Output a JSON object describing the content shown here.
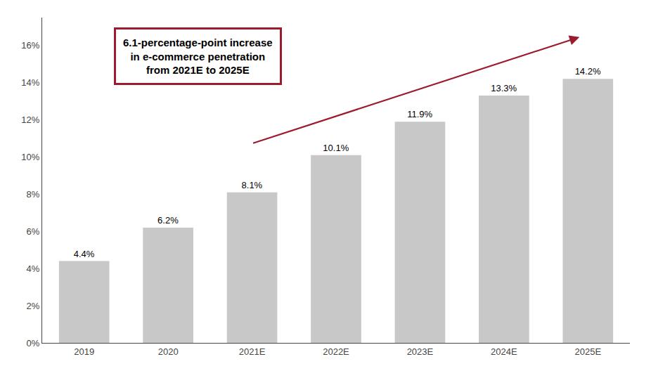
{
  "chart_data": {
    "type": "bar",
    "categories": [
      "2019",
      "2020",
      "2021E",
      "2022E",
      "2023E",
      "2024E",
      "2025E"
    ],
    "values": [
      4.4,
      6.2,
      8.1,
      10.1,
      11.9,
      13.3,
      14.2
    ],
    "value_labels": [
      "4.4%",
      "6.2%",
      "8.1%",
      "10.1%",
      "11.9%",
      "13.3%",
      "14.2%"
    ],
    "data_labels": true,
    "color": "#c8c8c8",
    "ylim": [
      0,
      17.5
    ],
    "yticks": [
      {
        "value": 0,
        "label": "0%"
      },
      {
        "value": 2,
        "label": "2%"
      },
      {
        "value": 4,
        "label": "4%"
      },
      {
        "value": 6,
        "label": "6%"
      },
      {
        "value": 8,
        "label": "8%"
      },
      {
        "value": 10,
        "label": "10%"
      },
      {
        "value": 12,
        "label": "12%"
      },
      {
        "value": 14,
        "label": "14%"
      },
      {
        "value": 16,
        "label": "16%"
      }
    ],
    "grid": false,
    "annotations": [
      {
        "text": "6.1-percentage-point increase\nin e-commerce penetration\nfrom 2021E to 2025E",
        "color": "#9b1c2e",
        "arrow_from": "2021E",
        "arrow_to": "2025E"
      }
    ]
  }
}
